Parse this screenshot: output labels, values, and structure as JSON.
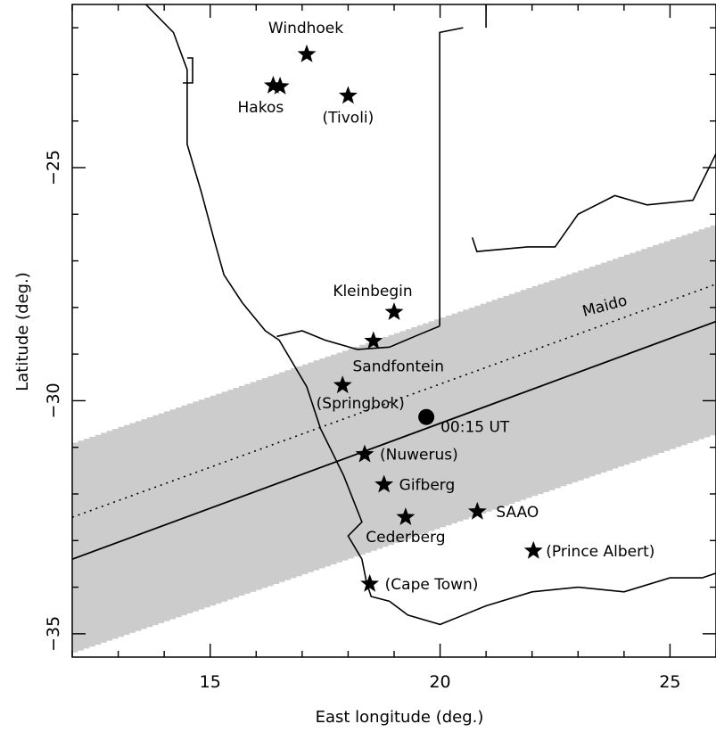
{
  "chart_data": {
    "type": "map",
    "xlabel": "East longitude (deg.)",
    "ylabel": "Latitude (deg.)",
    "xlim": [
      12,
      26
    ],
    "ylim": [
      -35.5,
      -21.5
    ],
    "xticks": [
      15,
      20,
      25
    ],
    "yticks": [
      -25,
      -30,
      -35
    ],
    "xtick_labels": [
      "15",
      "20",
      "25"
    ],
    "ytick_labels": [
      "−25",
      "−30",
      "−35"
    ],
    "colors": {
      "shadow_band": "#cccccc",
      "lines": "#000000"
    },
    "shadow_band": {
      "lower_edge": [
        [
          12,
          -35.4
        ],
        [
          26,
          -30.7
        ]
      ],
      "upper_edge": [
        [
          12,
          -30.9
        ],
        [
          26,
          -26.2
        ]
      ]
    },
    "centerline": [
      [
        12,
        -33.4
      ],
      [
        26,
        -28.3
      ]
    ],
    "track_maido": {
      "label": "Maido",
      "points": [
        [
          12,
          -32.5
        ],
        [
          26,
          -27.5
        ]
      ],
      "style": "dotted"
    },
    "event": {
      "label": "00:15 UT",
      "lon": 19.7,
      "lat": -30.35
    },
    "sites": [
      {
        "name": "Windhoek",
        "lon": 17.1,
        "lat": -22.57
      },
      {
        "name": "Hakos",
        "lon": 16.37,
        "lat": -23.24
      },
      {
        "name": "Hakos",
        "lon": 16.52,
        "lat": -23.26
      },
      {
        "name": "(Tivoli)",
        "lon": 18.0,
        "lat": -23.46
      },
      {
        "name": "Kleinbegin",
        "lon": 19.0,
        "lat": -28.1
      },
      {
        "name": "Sandfontein",
        "lon": 18.55,
        "lat": -28.72
      },
      {
        "name": "(Springbok)",
        "lon": 17.88,
        "lat": -29.67
      },
      {
        "name": "(Nuwerus)",
        "lon": 18.36,
        "lat": -31.15
      },
      {
        "name": "Gifberg",
        "lon": 18.78,
        "lat": -31.8
      },
      {
        "name": "Cederberg",
        "lon": 19.25,
        "lat": -32.5
      },
      {
        "name": "SAAO",
        "lon": 20.81,
        "lat": -32.38
      },
      {
        "name": "(Prince Albert)",
        "lon": 22.03,
        "lat": -33.22
      },
      {
        "name": "(Cape Town)",
        "lon": 18.47,
        "lat": -33.93
      }
    ],
    "coastline": [
      [
        13.6,
        -21.5
      ],
      [
        14.2,
        -22.1
      ],
      [
        14.5,
        -22.9
      ],
      [
        14.5,
        -24.5
      ],
      [
        14.8,
        -25.5
      ],
      [
        15.1,
        -26.6
      ],
      [
        15.3,
        -27.3
      ],
      [
        15.7,
        -27.9
      ],
      [
        16.2,
        -28.5
      ],
      [
        16.5,
        -28.7
      ],
      [
        17.1,
        -29.7
      ],
      [
        17.4,
        -30.6
      ],
      [
        17.9,
        -31.6
      ],
      [
        18.3,
        -32.6
      ],
      [
        18.0,
        -32.9
      ],
      [
        18.3,
        -33.4
      ],
      [
        18.4,
        -33.9
      ],
      [
        18.5,
        -34.2
      ],
      [
        18.9,
        -34.3
      ],
      [
        19.3,
        -34.6
      ],
      [
        20.0,
        -34.8
      ],
      [
        21.0,
        -34.4
      ],
      [
        22.0,
        -34.1
      ],
      [
        23.0,
        -34.0
      ],
      [
        24.0,
        -34.1
      ],
      [
        25.0,
        -33.8
      ],
      [
        25.7,
        -33.8
      ],
      [
        26,
        -33.7
      ]
    ],
    "borders": [
      [
        [
          16.45,
          -28.62
        ],
        [
          17.0,
          -28.5
        ],
        [
          17.5,
          -28.7
        ],
        [
          18.2,
          -28.9
        ],
        [
          18.9,
          -28.85
        ],
        [
          19.5,
          -28.6
        ],
        [
          19.99,
          -28.4
        ]
      ],
      [
        [
          19.99,
          -28.4
        ],
        [
          19.99,
          -24.75
        ],
        [
          19.99,
          -22.1
        ],
        [
          20.5,
          -22.0
        ]
      ],
      [
        [
          21.0,
          -21.5
        ],
        [
          21.0,
          -22.0
        ]
      ],
      [
        [
          26,
          -24.7
        ],
        [
          25.5,
          -25.7
        ],
        [
          24.5,
          -25.8
        ],
        [
          23.8,
          -25.6
        ],
        [
          23.0,
          -26.0
        ],
        [
          22.5,
          -26.7
        ],
        [
          21.9,
          -26.7
        ],
        [
          20.8,
          -26.8
        ],
        [
          20.7,
          -26.5
        ]
      ]
    ]
  }
}
